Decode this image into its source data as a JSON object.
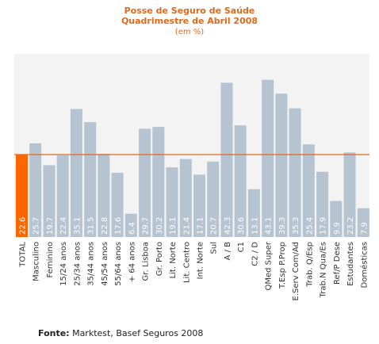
{
  "chart_data": {
    "type": "bar",
    "title": "Posse de Seguro de Saúde",
    "subtitle_line1": "Quadrimestre de Abril 2008",
    "subtitle_line2": "(em %)",
    "categories": [
      "TOTAL",
      "Masculino",
      "Feminino",
      "15/24 anos",
      "25/34 anos",
      "35/44 anos",
      "45/54 anos",
      "55/64 anos",
      "+ 64 anos",
      "Gr. Lisboa",
      "Gr. Porto",
      "Lit. Norte",
      "Lit. Centro",
      "Int. Norte",
      "Sul",
      "A / B",
      "C1",
      "C2 / D",
      "QMed Super",
      "T.Esp P.Prop",
      "E.Serv Com/Ad",
      "Trab. Q/Esp",
      "Trab.N Qua/Es",
      "Ref/P Dese",
      "Estudantes",
      "Domésticas"
    ],
    "values": [
      22.6,
      25.7,
      19.7,
      22.4,
      35.1,
      31.5,
      22.8,
      17.6,
      6.4,
      29.7,
      30.2,
      19.1,
      21.4,
      17.1,
      20.7,
      42.3,
      30.6,
      13.1,
      43.1,
      39.3,
      35.3,
      25.4,
      17.9,
      9.9,
      23.2,
      7.9
    ],
    "value_labels": [
      "22.6",
      "25.7",
      "19.7",
      "22.4",
      "35.1",
      "31.5",
      "22.8",
      "17.6",
      "6.4",
      "29.7",
      "30.2",
      "19.1",
      "21.4",
      "17.1",
      "20.7",
      "42.3",
      "30.6",
      "13.1",
      "43.1",
      "39.3",
      "35.3",
      "25.4",
      "17.9",
      "9.9",
      "23.2",
      "7.9"
    ],
    "ylim": [
      0,
      50
    ],
    "reference_line": 22.6,
    "grid": false,
    "colors": {
      "bar": "#b6c3d0",
      "highlight": "#ff6600",
      "reference": "#e0691c",
      "plot_bg": "#f3f3f3",
      "title": "#e0691c"
    }
  },
  "footer": {
    "source_label": "Fonte:",
    "source_text": "Marktest, Basef Seguros 2008"
  }
}
